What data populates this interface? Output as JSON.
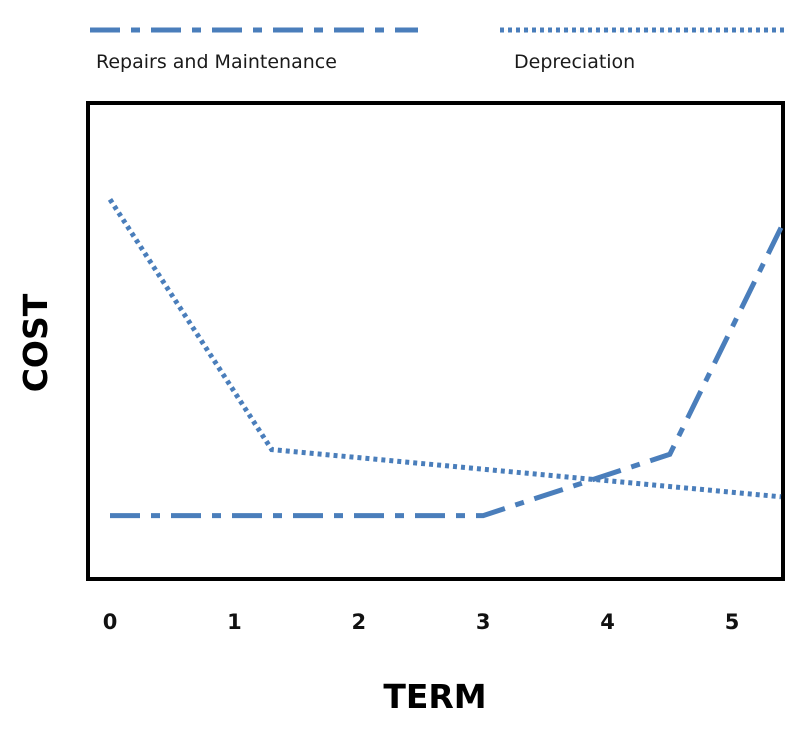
{
  "chart_data": {
    "type": "line",
    "title": "",
    "xlabel": "TERM",
    "ylabel": "COST",
    "x_ticks": [
      "0",
      "1",
      "2",
      "3",
      "4",
      "5"
    ],
    "xlim": [
      0,
      5.5
    ],
    "ylim": [
      0,
      100
    ],
    "grid": false,
    "legend_position": "top",
    "series": [
      {
        "name": "Repairs and Maintenance",
        "style": "dash-dot",
        "color": "#4a7ebb",
        "x": [
          0,
          3,
          4.5,
          5.5
        ],
        "y": [
          13,
          13,
          26,
          74
        ]
      },
      {
        "name": "Depreciation",
        "style": "dotted",
        "color": "#4a7ebb",
        "x": [
          0,
          1.3,
          5.5
        ],
        "y": [
          80,
          27,
          17
        ]
      }
    ]
  }
}
